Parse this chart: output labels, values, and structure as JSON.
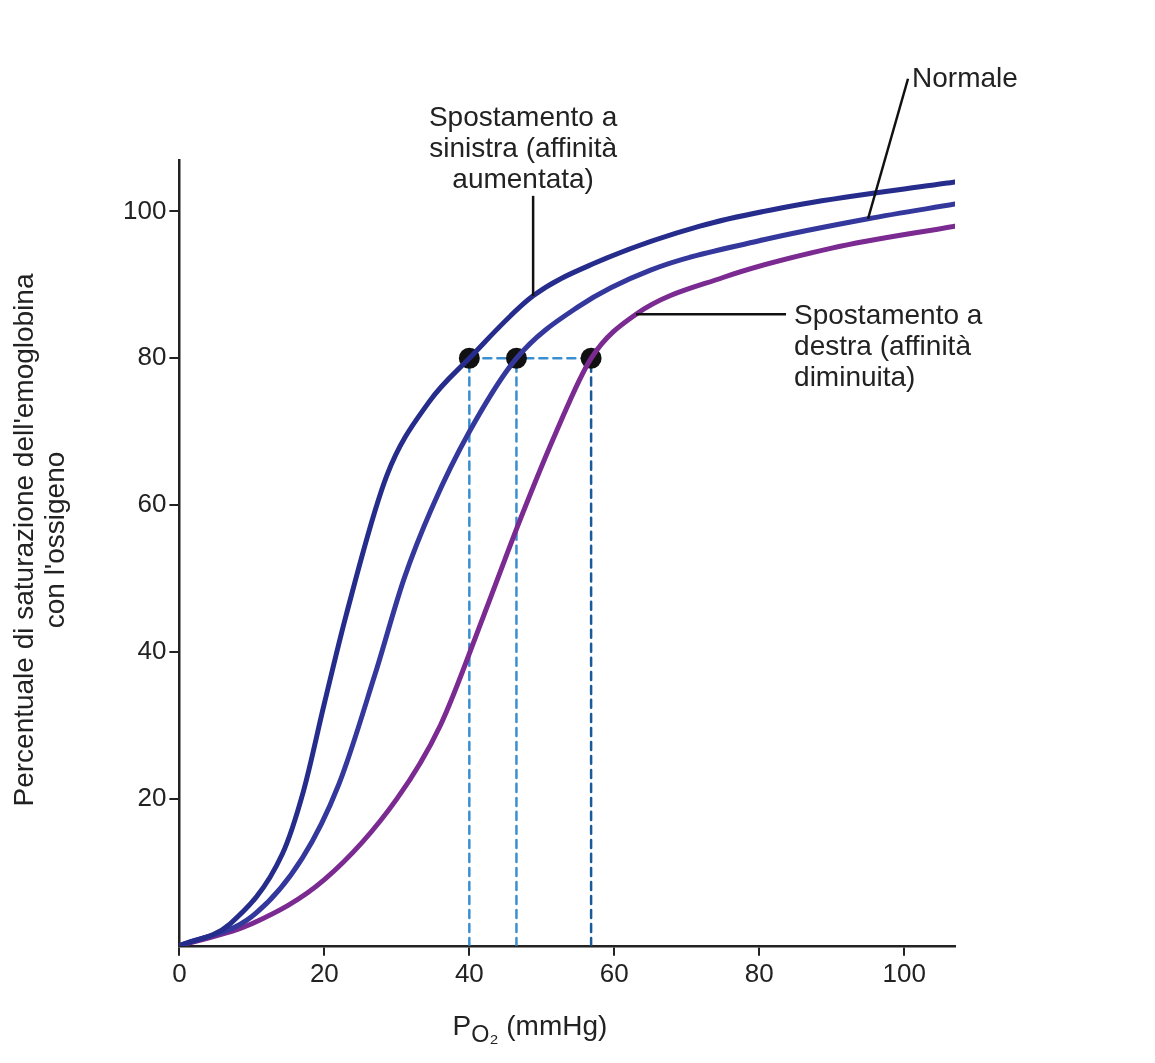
{
  "chart_data": {
    "type": "line",
    "xlabel": "P$_{O₂}$ (mmHg)",
    "ylabel": "Percentuale di saturazione dell'emoglobina con l'ossigeno",
    "xlim": [
      0,
      107
    ],
    "ylim": [
      0,
      107
    ],
    "xticks": [
      0,
      20,
      40,
      60,
      80,
      100
    ],
    "yticks": [
      20,
      40,
      60,
      80,
      100
    ],
    "grid": false,
    "legend": false,
    "marker": "none",
    "line_style": "solid",
    "series": [
      {
        "color": "#262c8c",
        "x": [
          0,
          7,
          14.2,
          17.1,
          20,
          23,
          28.6,
          34.4,
          40,
          48.8,
          57.4,
          71.8,
          86,
          107
        ],
        "values": [
          0,
          3,
          12.5,
          21,
          33,
          45,
          64,
          74,
          80,
          88.5,
          93,
          98,
          101,
          104
        ]
      },
      {
        "color": "#34389c",
        "x": [
          0,
          10,
          17,
          22,
          27,
          31,
          35,
          40,
          46.5,
          55,
          65,
          80,
          95,
          107
        ],
        "values": [
          0,
          4,
          12,
          22,
          37,
          50,
          60,
          70,
          80,
          87,
          92,
          96,
          99,
          101
        ]
      },
      {
        "color": "#7a2a90",
        "x": [
          0,
          10,
          20,
          30,
          36,
          42,
          47,
          52,
          56.8,
          63,
          75,
          90,
          107
        ],
        "values": [
          0,
          3,
          9,
          20,
          30,
          45,
          58,
          70,
          80,
          86,
          91,
          95,
          98
        ]
      },
      {
        "type": "scatter",
        "marker": "circle",
        "color": "#111111",
        "x": [
          40,
          46.5,
          56.8
        ],
        "values": [
          80,
          80,
          80
        ]
      },
      {
        "line_style": "dashed",
        "color": "#3a8fd0",
        "x": [
          40,
          40
        ],
        "values": [
          0,
          80
        ]
      },
      {
        "line_style": "dashed",
        "color": "#3a8fd0",
        "x": [
          46.5,
          46.5
        ],
        "values": [
          0,
          80
        ]
      },
      {
        "line_style": "dashed",
        "color": "#1a5a9a",
        "x": [
          56.8,
          56.8
        ],
        "values": [
          0,
          80
        ]
      },
      {
        "line_style": "dashed",
        "color": "#3a8fd0",
        "x": [
          40,
          56.8
        ],
        "values": [
          80,
          80
        ]
      }
    ],
    "annotations": [
      {
        "text": "Spostamento a sinistra (affinità aumentata)",
        "x": 48.8,
        "y": 88.5
      },
      {
        "text": "Normale",
        "x": 95,
        "y": 99
      },
      {
        "text": "Spostamento a destra (affinità diminuita)",
        "x": 63,
        "y": 86
      }
    ]
  }
}
